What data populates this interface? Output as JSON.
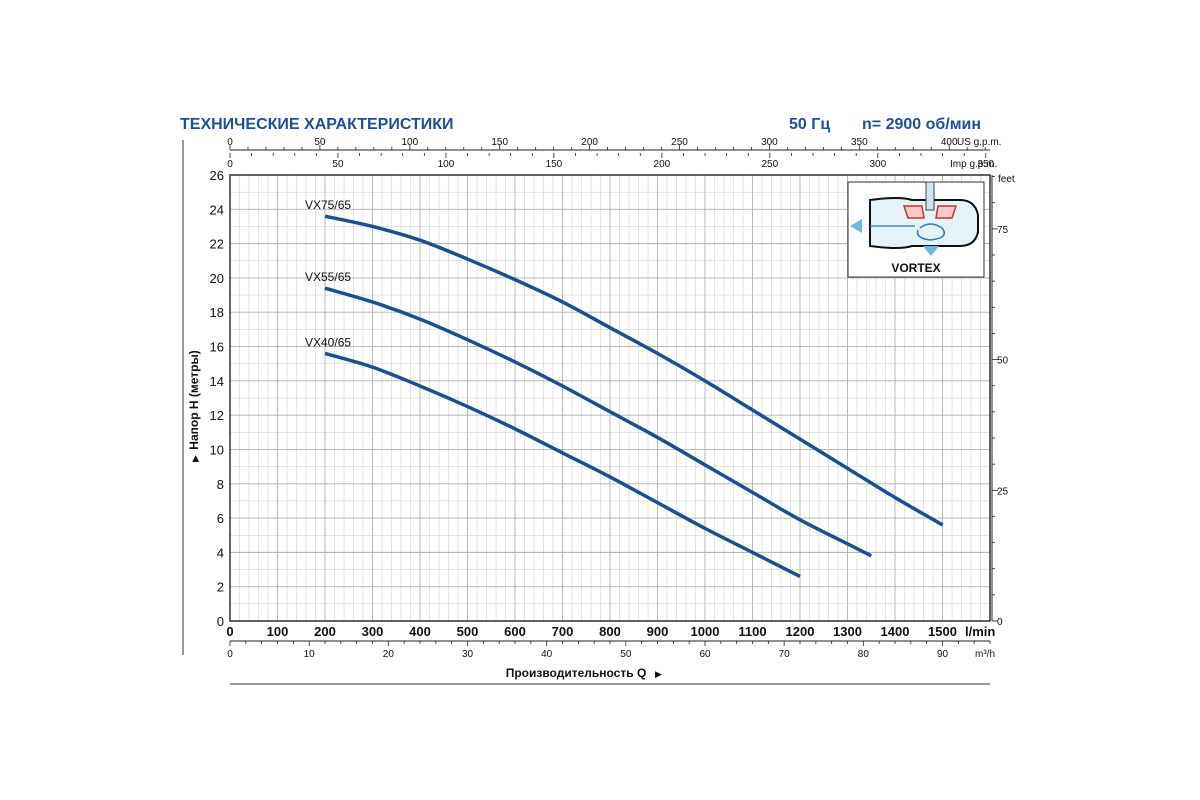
{
  "header": {
    "title": "ТЕХНИЧЕСКИЕ ХАРАКТЕРИСТИКИ",
    "frequency": "50 Гц",
    "speed": "n= 2900 об/мин"
  },
  "colors": {
    "accent": "#1f4e9a",
    "curve": "#1a4f94",
    "grid": "#c8c8c8",
    "grid_major": "#b0b0b0"
  },
  "inset": {
    "label": "VORTEX"
  },
  "chart_data": {
    "type": "line",
    "title": "",
    "ylabel": "Напор Н (метры)",
    "xlabel": "Производительность Q",
    "xlim": [
      0,
      1600
    ],
    "ylim": [
      0,
      26
    ],
    "grid": true,
    "x_unit": "l/min",
    "x_ticks": [
      0,
      100,
      200,
      300,
      400,
      500,
      600,
      700,
      800,
      900,
      1000,
      1100,
      1200,
      1300,
      1400,
      1500
    ],
    "x_tick_labels": [
      "0",
      "100",
      "200",
      "300",
      "400",
      "500",
      "600",
      "700",
      "800",
      "900",
      "1000",
      "1100",
      "1200",
      "1300",
      "1400",
      "1500"
    ],
    "y_ticks": [
      0,
      2,
      4,
      6,
      8,
      10,
      12,
      14,
      16,
      18,
      20,
      22,
      24,
      26
    ],
    "y_tick_labels": [
      "0",
      "2",
      "4",
      "6",
      "8",
      "10",
      "12",
      "14",
      "16",
      "18",
      "20",
      "22",
      "24",
      "26"
    ],
    "secondary_axes": {
      "m3h": {
        "unit": "m³/h",
        "ticks": [
          0,
          10,
          20,
          30,
          40,
          50,
          60,
          70,
          80,
          90
        ],
        "labels": [
          "0",
          "10",
          "20",
          "30",
          "40",
          "50",
          "60",
          "70",
          "80",
          "90"
        ]
      },
      "us_gpm": {
        "unit": "US g.p.m.",
        "ticks": [
          0,
          50,
          100,
          150,
          200,
          250,
          300,
          350,
          400
        ],
        "labels": [
          "0",
          "50",
          "100",
          "150",
          "200",
          "250",
          "300",
          "350",
          "400"
        ]
      },
      "imp_gpm": {
        "unit": "Imp g.p.m.",
        "ticks": [
          0,
          50,
          100,
          150,
          200,
          250,
          300,
          350
        ],
        "labels": [
          "0",
          "50",
          "100",
          "150",
          "200",
          "250",
          "300",
          "350"
        ]
      },
      "feet": {
        "unit": "feet",
        "ticks": [
          0,
          25,
          50,
          75
        ],
        "labels": [
          "0",
          "25",
          "50",
          "75"
        ]
      }
    },
    "series": [
      {
        "name": "VX75/65",
        "x": [
          200,
          300,
          400,
          500,
          600,
          700,
          800,
          900,
          1000,
          1100,
          1200,
          1300,
          1400,
          1500
        ],
        "y": [
          23.6,
          23.0,
          22.2,
          21.1,
          19.9,
          18.6,
          17.1,
          15.6,
          14.0,
          12.3,
          10.6,
          8.9,
          7.2,
          5.6
        ]
      },
      {
        "name": "VX55/65",
        "x": [
          200,
          300,
          400,
          500,
          600,
          700,
          800,
          900,
          1000,
          1100,
          1200,
          1300,
          1350
        ],
        "y": [
          19.4,
          18.6,
          17.6,
          16.4,
          15.1,
          13.7,
          12.2,
          10.7,
          9.1,
          7.5,
          5.9,
          4.5,
          3.8
        ]
      },
      {
        "name": "VX40/65",
        "x": [
          200,
          300,
          400,
          500,
          600,
          700,
          800,
          900,
          1000,
          1100,
          1200
        ],
        "y": [
          15.6,
          14.8,
          13.7,
          12.5,
          11.2,
          9.8,
          8.4,
          6.9,
          5.4,
          4.0,
          2.6
        ]
      }
    ]
  }
}
